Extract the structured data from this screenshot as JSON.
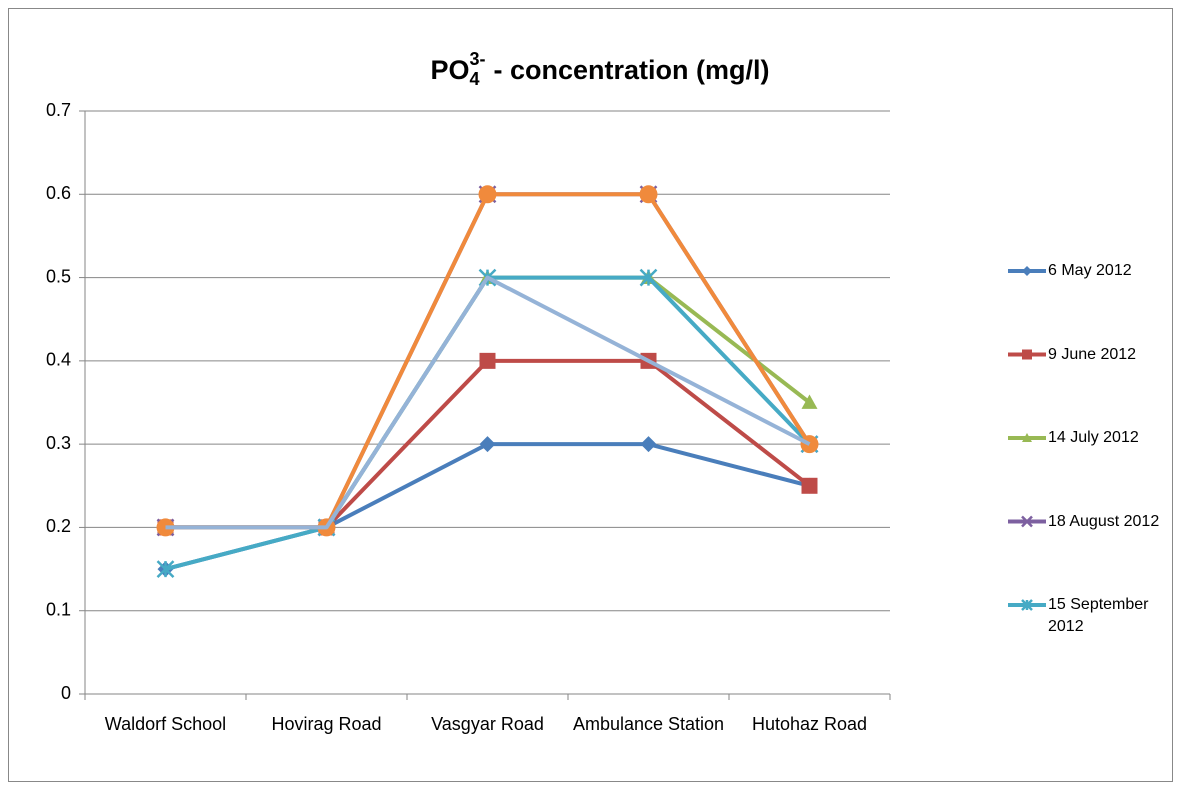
{
  "chart_data": {
    "type": "line",
    "title": [
      "PO",
      "4",
      "3-",
      "- concentration (mg/l)"
    ],
    "categories": [
      "Waldorf School",
      "Hovirag Road",
      "Vasgyar Road",
      "Ambulance Station",
      "Hutohaz Road"
    ],
    "series": [
      {
        "name": "6 May 2012",
        "color": "#4a7ebb",
        "marker": "diamond",
        "values": [
          0.15,
          0.2,
          0.3,
          0.3,
          0.25
        ]
      },
      {
        "name": "9 June 2012",
        "color": "#be4b48",
        "marker": "square",
        "values": [
          0.2,
          0.2,
          0.4,
          0.4,
          0.25
        ]
      },
      {
        "name": "14 July 2012",
        "color": "#98b954",
        "marker": "triangle",
        "values": [
          0.2,
          0.2,
          0.5,
          0.5,
          0.35
        ]
      },
      {
        "name": "18 August 2012",
        "color": "#7d60a0",
        "marker": "x",
        "values": [
          0.2,
          0.2,
          0.6,
          0.6,
          0.3
        ]
      },
      {
        "name": "15 September 2012",
        "color": "#46aac5",
        "marker": "star",
        "values": [
          0.15,
          0.2,
          0.5,
          0.5,
          0.3
        ]
      },
      {
        "color": "#f08a3c",
        "marker": "circle",
        "values": [
          0.2,
          0.2,
          0.6,
          0.6,
          0.3
        ]
      },
      {
        "color": "#95b3d7",
        "marker": "none",
        "values": [
          0.2,
          0.2,
          0.5,
          0.4,
          0.3
        ]
      }
    ],
    "ylim": [
      0,
      0.7
    ],
    "yticks": [
      0,
      0.1,
      0.2,
      0.3,
      0.4,
      0.5,
      0.6,
      0.7
    ],
    "grid": true,
    "legend": "right"
  }
}
